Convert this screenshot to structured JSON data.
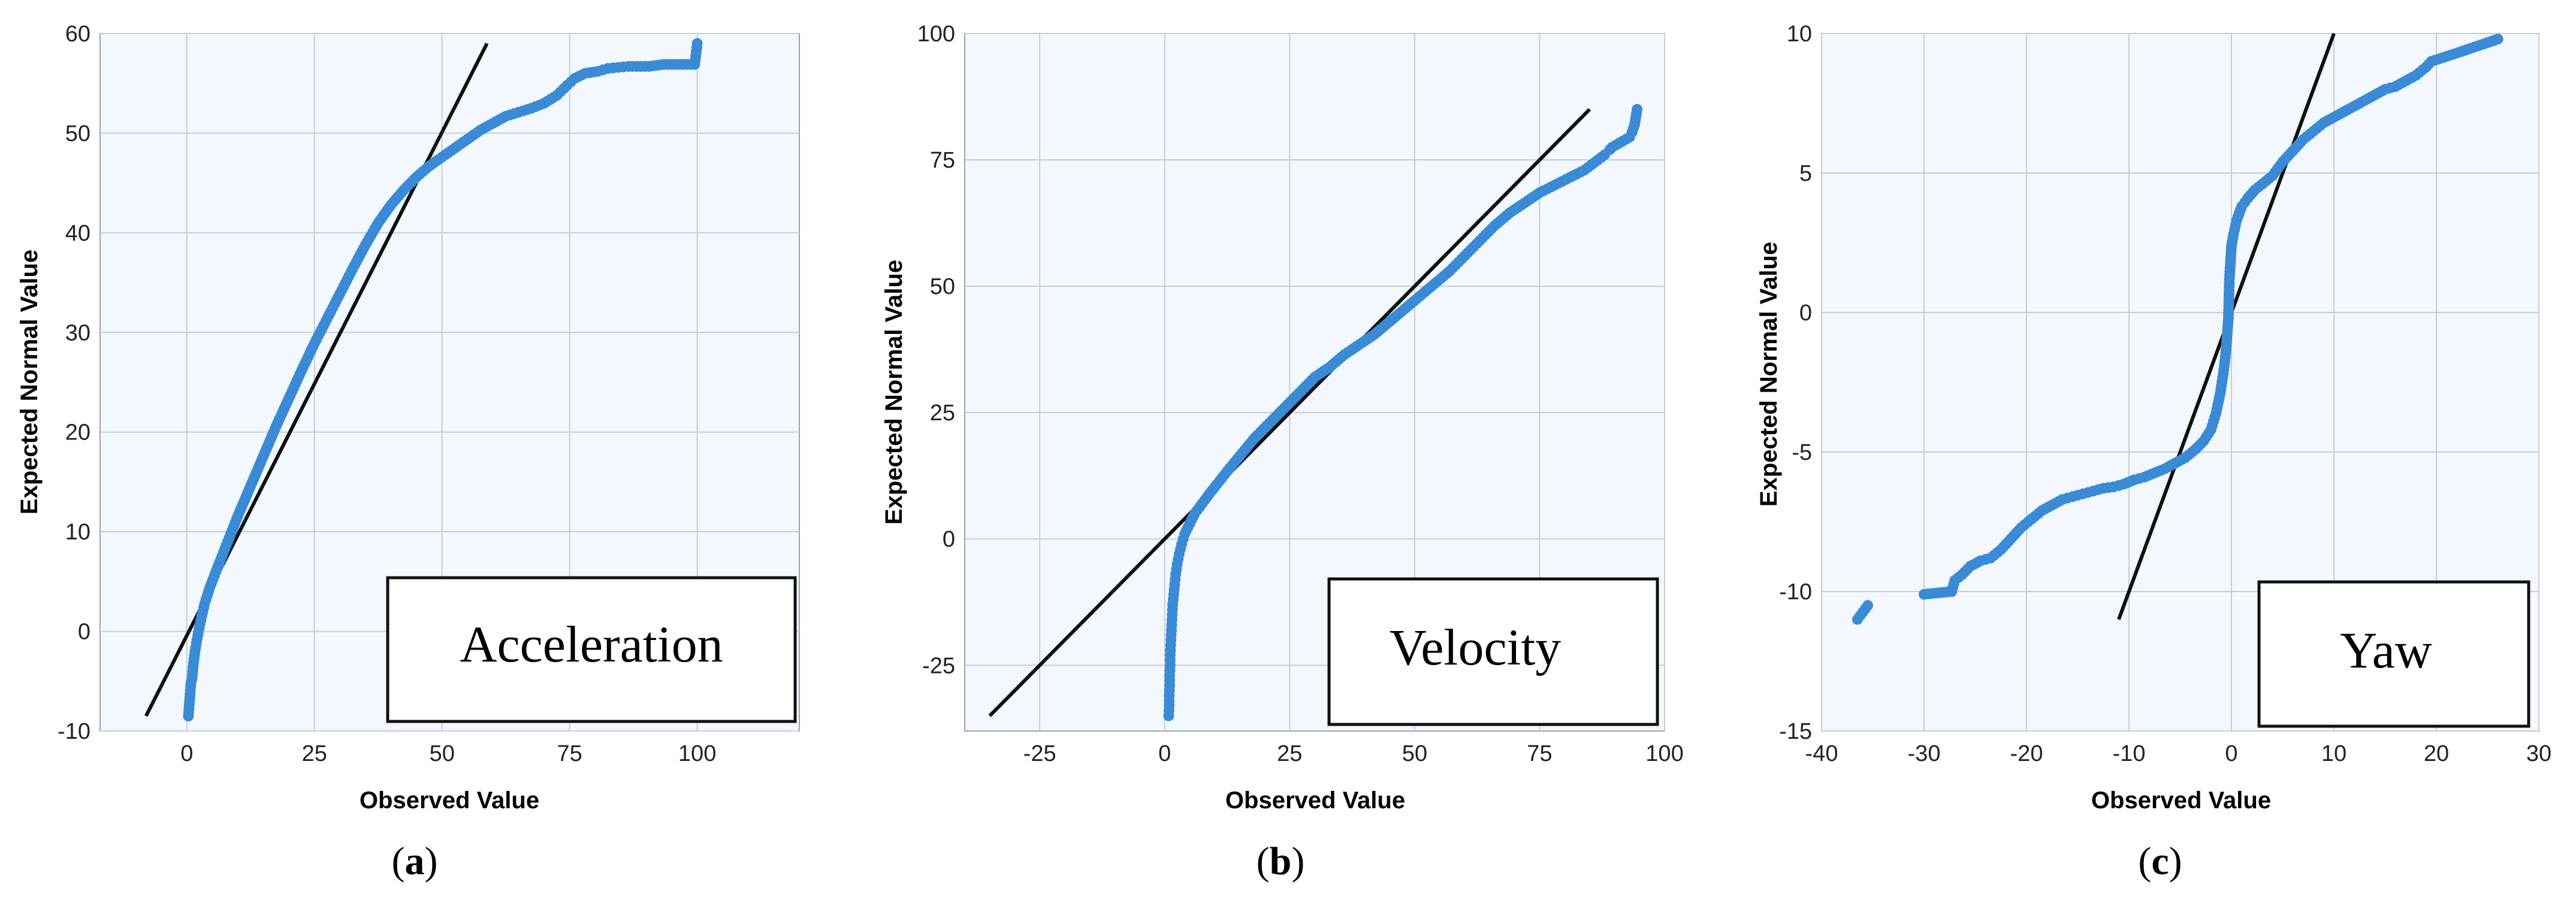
{
  "colors": {
    "plot_bg": "#f2f8fe",
    "grid": "#c8cdd2",
    "axis": "#9aa2aa",
    "points": "#3a8ad6",
    "line": "#111111"
  },
  "chart_data": [
    {
      "type": "scatter",
      "panel_label": "a",
      "annotation": "Acceleration",
      "xlabel": "Observed Value",
      "ylabel": "Expected Normal Value",
      "xlim": [
        -17,
        120
      ],
      "ylim": [
        -10,
        60
      ],
      "xticks": [
        0,
        25,
        50,
        75,
        100
      ],
      "yticks": [
        -10,
        0,
        10,
        20,
        30,
        40,
        50,
        60
      ],
      "reference_line": [
        [
          -8,
          -8.5
        ],
        [
          58.8,
          59
        ]
      ],
      "points": [
        [
          0.3,
          -8.5
        ],
        [
          0.8,
          -5.2
        ],
        [
          1.0,
          -4.8
        ],
        [
          1.3,
          -3.2
        ],
        [
          1.6,
          -2.0
        ],
        [
          2.0,
          -0.8
        ],
        [
          2.4,
          0.3
        ],
        [
          2.9,
          1.5
        ],
        [
          3.5,
          2.8
        ],
        [
          4.5,
          4.4
        ],
        [
          6,
          6.4
        ],
        [
          8,
          9
        ],
        [
          10,
          11.6
        ],
        [
          12.5,
          14.6
        ],
        [
          15,
          17.6
        ],
        [
          17.5,
          20.6
        ],
        [
          20,
          23.4
        ],
        [
          22.5,
          26.2
        ],
        [
          25,
          28.9
        ],
        [
          27.5,
          31.4
        ],
        [
          30,
          33.9
        ],
        [
          32.5,
          36.4
        ],
        [
          35,
          38.8
        ],
        [
          37.5,
          41
        ],
        [
          40,
          42.8
        ],
        [
          42.5,
          44.3
        ],
        [
          45,
          45.6
        ],
        [
          47.5,
          46.7
        ],
        [
          50,
          47.6
        ],
        [
          52.5,
          48.5
        ],
        [
          55,
          49.4
        ],
        [
          57.5,
          50.3
        ],
        [
          60,
          51.0
        ],
        [
          62.5,
          51.7
        ],
        [
          65,
          52.1
        ],
        [
          67.5,
          52.5
        ],
        [
          70,
          53.0
        ],
        [
          72.5,
          53.8
        ],
        [
          74.5,
          54.8
        ],
        [
          76,
          55.5
        ],
        [
          78,
          56.0
        ],
        [
          80.5,
          56.2
        ],
        [
          82.5,
          56.5
        ],
        [
          84.5,
          56.6
        ],
        [
          86.5,
          56.7
        ],
        [
          90.5,
          56.7
        ],
        [
          93.5,
          56.9
        ],
        [
          99.5,
          56.9
        ],
        [
          100,
          59.0
        ]
      ]
    },
    {
      "type": "scatter",
      "panel_label": "b",
      "annotation": "Velocity",
      "xlabel": "Observed Value",
      "ylabel": "Expected Normal Value",
      "xlim": [
        -40,
        100
      ],
      "ylim": [
        -38,
        100
      ],
      "xticks": [
        -25,
        0,
        25,
        50,
        75,
        100
      ],
      "yticks": [
        -25,
        0,
        25,
        50,
        75,
        100
      ],
      "reference_line": [
        [
          -35,
          -35
        ],
        [
          85,
          85
        ]
      ],
      "points": [
        [
          0.8,
          -35
        ],
        [
          0.9,
          -33
        ],
        [
          0.9,
          -31
        ],
        [
          1.0,
          -29
        ],
        [
          1.0,
          -27
        ],
        [
          1.1,
          -25
        ],
        [
          1.1,
          -23
        ],
        [
          1.2,
          -21
        ],
        [
          1.3,
          -19
        ],
        [
          1.4,
          -17
        ],
        [
          1.5,
          -15
        ],
        [
          1.6,
          -13
        ],
        [
          1.8,
          -11
        ],
        [
          2.0,
          -9
        ],
        [
          2.2,
          -7
        ],
        [
          2.5,
          -5
        ],
        [
          2.9,
          -3
        ],
        [
          3.4,
          -1
        ],
        [
          4,
          1
        ],
        [
          5,
          3
        ],
        [
          6,
          5
        ],
        [
          7.5,
          7
        ],
        [
          9,
          9
        ],
        [
          11,
          11.5
        ],
        [
          13,
          14
        ],
        [
          15.5,
          17
        ],
        [
          18,
          20
        ],
        [
          21,
          23
        ],
        [
          24,
          26
        ],
        [
          27,
          29
        ],
        [
          30,
          32
        ],
        [
          33,
          34
        ],
        [
          36,
          36.5
        ],
        [
          39,
          38.5
        ],
        [
          42,
          40.5
        ],
        [
          45,
          43
        ],
        [
          48,
          45.5
        ],
        [
          51,
          48
        ],
        [
          54,
          50.5
        ],
        [
          57,
          53
        ],
        [
          60,
          56
        ],
        [
          63,
          59
        ],
        [
          66,
          62
        ],
        [
          69,
          64.5
        ],
        [
          72,
          66.5
        ],
        [
          75,
          68.5
        ],
        [
          78,
          70
        ],
        [
          81,
          71.5
        ],
        [
          84,
          73
        ],
        [
          86,
          74.5
        ],
        [
          88,
          76
        ],
        [
          89,
          77
        ],
        [
          89.5,
          77.5
        ],
        [
          93,
          79.5
        ],
        [
          93.5,
          80.5
        ],
        [
          94,
          82
        ],
        [
          94.5,
          85
        ]
      ]
    },
    {
      "type": "scatter",
      "panel_label": "c",
      "annotation": "Yaw",
      "xlabel": "Observed Value",
      "ylabel": "Expected Normal Value",
      "xlim": [
        -40,
        30
      ],
      "ylim": [
        -15,
        10
      ],
      "xticks": [
        -40,
        -30,
        -20,
        -10,
        0,
        10,
        20,
        30
      ],
      "yticks": [
        -15,
        -10,
        -5,
        0,
        5,
        10
      ],
      "reference_line": [
        [
          -11,
          -11
        ],
        [
          10,
          10
        ]
      ],
      "points": [
        [
          -36.5,
          -11.0
        ],
        [
          -35.5,
          -10.5
        ],
        [
          -30,
          -10.1
        ],
        [
          -27.3,
          -10.0
        ],
        [
          -27,
          -9.6
        ],
        [
          -26.3,
          -9.4
        ],
        [
          -25.5,
          -9.1
        ],
        [
          -24.5,
          -8.9
        ],
        [
          -23.5,
          -8.8
        ],
        [
          -22.5,
          -8.5
        ],
        [
          -21.5,
          -8.1
        ],
        [
          -20.5,
          -7.7
        ],
        [
          -19.5,
          -7.4
        ],
        [
          -18.5,
          -7.1
        ],
        [
          -17.5,
          -6.9
        ],
        [
          -16.5,
          -6.7
        ],
        [
          -15.5,
          -6.6
        ],
        [
          -14.5,
          -6.5
        ],
        [
          -13.5,
          -6.4
        ],
        [
          -12.5,
          -6.3
        ],
        [
          -11.5,
          -6.25
        ],
        [
          -10.5,
          -6.15
        ],
        [
          -9.5,
          -6.0
        ],
        [
          -8.5,
          -5.9
        ],
        [
          -7.5,
          -5.75
        ],
        [
          -6.5,
          -5.6
        ],
        [
          -5.5,
          -5.4
        ],
        [
          -4.5,
          -5.2
        ],
        [
          -3.5,
          -4.9
        ],
        [
          -2.7,
          -4.6
        ],
        [
          -2.0,
          -4.2
        ],
        [
          -1.5,
          -3.6
        ],
        [
          -1.1,
          -2.9
        ],
        [
          -0.8,
          -2.2
        ],
        [
          -0.6,
          -1.6
        ],
        [
          -0.5,
          -1.2
        ],
        [
          -0.3,
          -0.2
        ],
        [
          -0.2,
          1.2
        ],
        [
          0.0,
          2.4
        ],
        [
          0.2,
          2.8
        ],
        [
          0.5,
          3.3
        ],
        [
          1.0,
          3.8
        ],
        [
          1.6,
          4.1
        ],
        [
          2.3,
          4.4
        ],
        [
          3.0,
          4.6
        ],
        [
          4.0,
          4.9
        ],
        [
          5,
          5.4
        ],
        [
          6,
          5.8
        ],
        [
          7,
          6.2
        ],
        [
          8,
          6.5
        ],
        [
          9,
          6.8
        ],
        [
          10,
          7.0
        ],
        [
          11,
          7.2
        ],
        [
          12,
          7.4
        ],
        [
          13,
          7.6
        ],
        [
          14,
          7.8
        ],
        [
          15,
          8.0
        ],
        [
          16,
          8.1
        ],
        [
          17,
          8.3
        ],
        [
          18,
          8.5
        ],
        [
          19,
          8.8
        ],
        [
          19.5,
          9.0
        ],
        [
          22,
          9.3
        ],
        [
          26,
          9.8
        ]
      ]
    }
  ]
}
